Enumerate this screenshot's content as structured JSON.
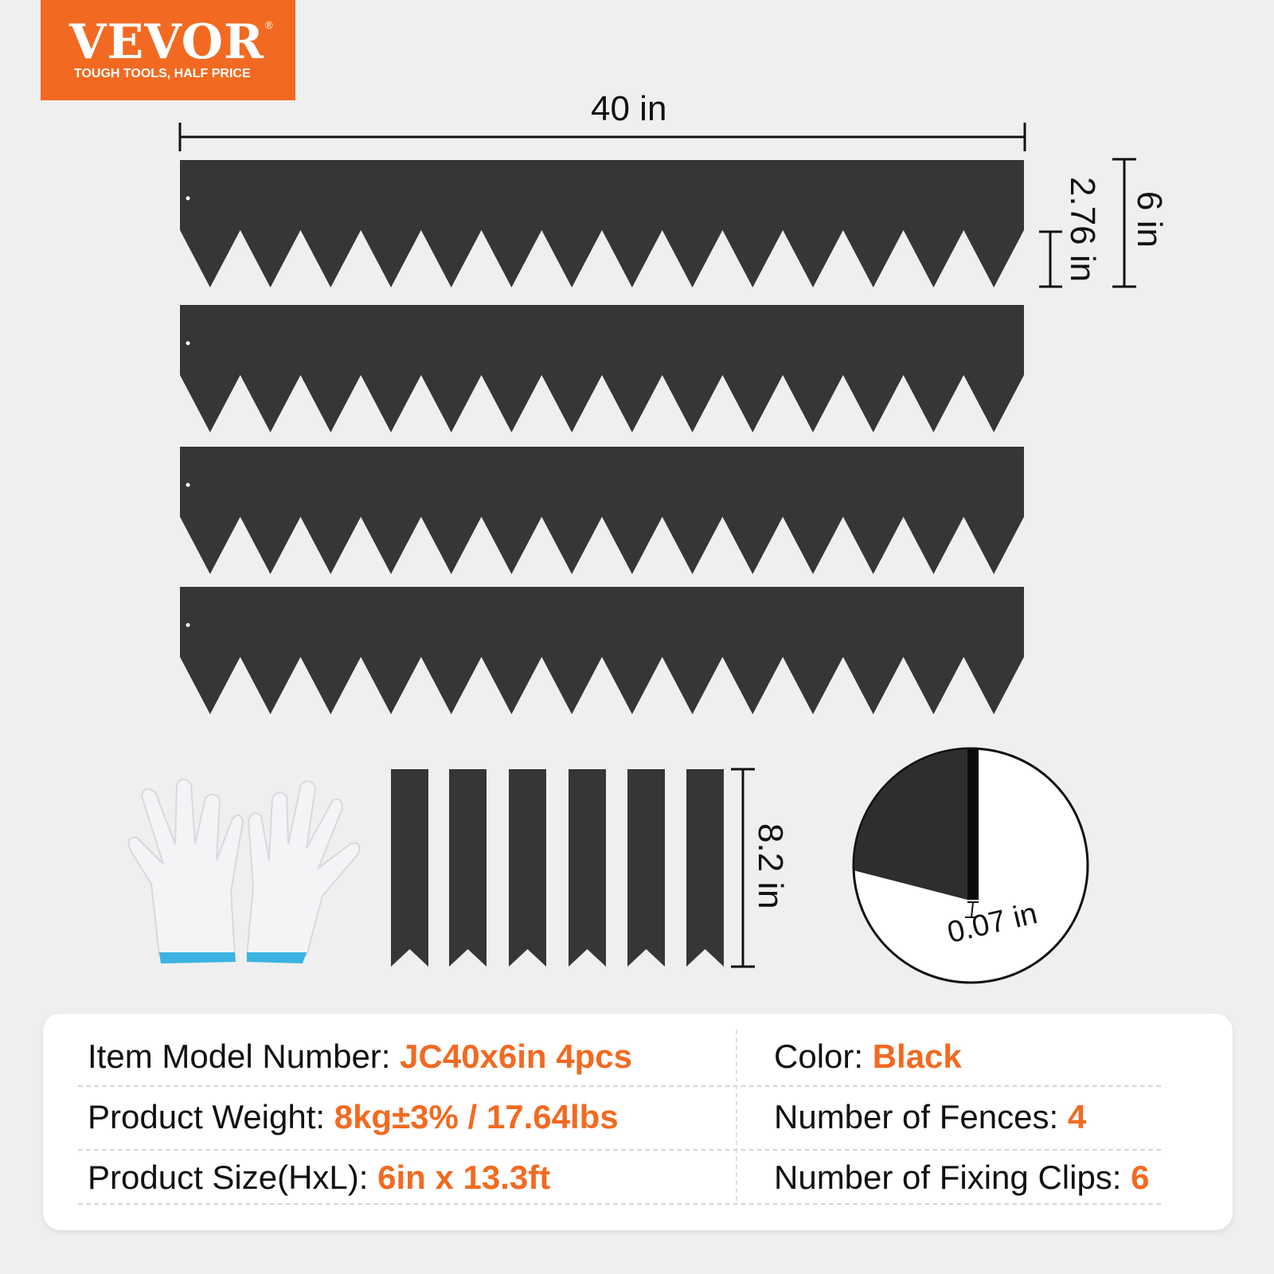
{
  "logo": {
    "brand": "VEVOR",
    "registered": "®",
    "tagline": "TOUGH TOOLS, HALF PRICE",
    "color": "#f26a21"
  },
  "dimensions": {
    "length": "40 in",
    "height": "6 in",
    "spike_height": "2.76 in",
    "clip_length": "8.2 in",
    "thickness": "0.07 in"
  },
  "product": {
    "fence_count": 4,
    "clip_count": 6,
    "fence_color": "#363638"
  },
  "specs": [
    {
      "label": "Item Model Number: ",
      "value": "JC40x6in 4pcs"
    },
    {
      "label": "Color: ",
      "value": "Black"
    },
    {
      "label": "Product Weight: ",
      "value": "8kg±3% / 17.64lbs"
    },
    {
      "label": "Number of Fences: ",
      "value": "4"
    },
    {
      "label": "Product Size(HxL): ",
      "value": "6in x 13.3ft"
    },
    {
      "label": "Number of Fixing Clips: ",
      "value": "6"
    }
  ]
}
